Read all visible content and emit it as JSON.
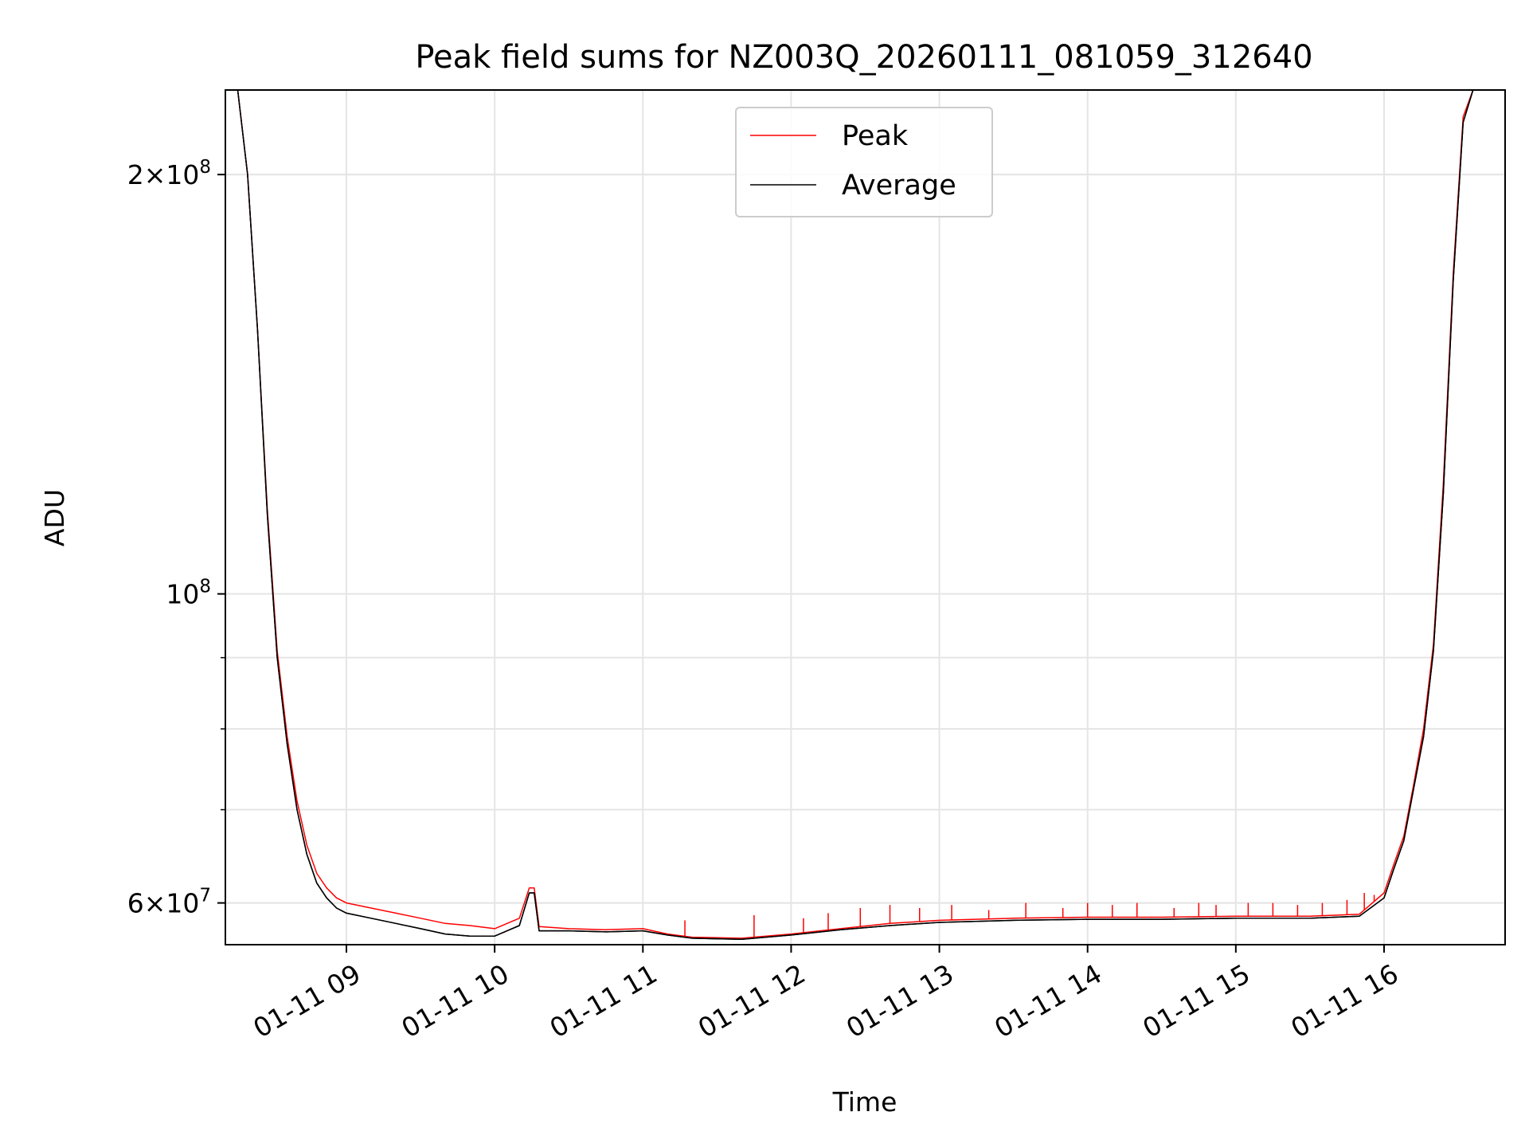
{
  "chart_data": {
    "type": "line",
    "title": "Peak field sums for NZ003Q_20260111_081059_312640",
    "xlabel": "Time",
    "ylabel": "ADU",
    "yscale": "log",
    "grid": true,
    "legend_position": "top-center",
    "xlim": [
      "2026-01-11 08:11",
      "2026-01-11 16:49"
    ],
    "ylim": [
      56000000,
      230000000
    ],
    "x_ticks": [
      {
        "value": "2026-01-11 09:00",
        "label": "01-11 09"
      },
      {
        "value": "2026-01-11 10:00",
        "label": "01-11 10"
      },
      {
        "value": "2026-01-11 11:00",
        "label": "01-11 11"
      },
      {
        "value": "2026-01-11 12:00",
        "label": "01-11 12"
      },
      {
        "value": "2026-01-11 13:00",
        "label": "01-11 13"
      },
      {
        "value": "2026-01-11 14:00",
        "label": "01-11 14"
      },
      {
        "value": "2026-01-11 15:00",
        "label": "01-11 15"
      },
      {
        "value": "2026-01-11 16:00",
        "label": "01-11 16"
      }
    ],
    "y_ticks": [
      {
        "value": 200000000,
        "label_base": "2×10",
        "label_exp": "8"
      },
      {
        "value": 100000000,
        "label_base": "10",
        "label_exp": "8"
      },
      {
        "value": 60000000,
        "label_base": "6×10",
        "label_exp": "7"
      }
    ],
    "y_minor_ticks": [
      60000000,
      70000000,
      80000000,
      90000000,
      200000000
    ],
    "series": [
      {
        "name": "Peak",
        "color": "#ff0000",
        "x": [
          "2026-01-11 08:11",
          "2026-01-11 08:16",
          "2026-01-11 08:20",
          "2026-01-11 08:24",
          "2026-01-11 08:28",
          "2026-01-11 08:32",
          "2026-01-11 08:36",
          "2026-01-11 08:40",
          "2026-01-11 08:44",
          "2026-01-11 08:48",
          "2026-01-11 08:52",
          "2026-01-11 08:56",
          "2026-01-11 09:00",
          "2026-01-11 09:10",
          "2026-01-11 09:20",
          "2026-01-11 09:30",
          "2026-01-11 09:40",
          "2026-01-11 09:50",
          "2026-01-11 10:00",
          "2026-01-11 10:10",
          "2026-01-11 10:14",
          "2026-01-11 10:16",
          "2026-01-11 10:18",
          "2026-01-11 10:30",
          "2026-01-11 10:45",
          "2026-01-11 11:00",
          "2026-01-11 11:10",
          "2026-01-11 11:20",
          "2026-01-11 11:40",
          "2026-01-11 12:00",
          "2026-01-11 12:20",
          "2026-01-11 12:40",
          "2026-01-11 13:00",
          "2026-01-11 13:30",
          "2026-01-11 14:00",
          "2026-01-11 14:30",
          "2026-01-11 15:00",
          "2026-01-11 15:30",
          "2026-01-11 15:50",
          "2026-01-11 16:00",
          "2026-01-11 16:04",
          "2026-01-11 16:08",
          "2026-01-11 16:12",
          "2026-01-11 16:16",
          "2026-01-11 16:20",
          "2026-01-11 16:24",
          "2026-01-11 16:28",
          "2026-01-11 16:32",
          "2026-01-11 16:36",
          "2026-01-11 16:40",
          "2026-01-11 16:49"
        ],
        "values": [
          230000000,
          230000000,
          200000000,
          155000000,
          115000000,
          91000000,
          79000000,
          71000000,
          66000000,
          63000000,
          61500000,
          60500000,
          60000000,
          59500000,
          59000000,
          58500000,
          58000000,
          57800000,
          57500000,
          58500000,
          61500000,
          61500000,
          57700000,
          57500000,
          57400000,
          57500000,
          57000000,
          56700000,
          56600000,
          57000000,
          57500000,
          58000000,
          58300000,
          58500000,
          58600000,
          58600000,
          58700000,
          58700000,
          58900000,
          61000000,
          64000000,
          67000000,
          73000000,
          80000000,
          92000000,
          120000000,
          170000000,
          220000000,
          230000000,
          230000000,
          230000000
        ],
        "spikes": [
          {
            "x": "2026-01-11 11:17",
            "value": 58300000
          },
          {
            "x": "2026-01-11 11:45",
            "value": 58800000
          },
          {
            "x": "2026-01-11 12:05",
            "value": 58500000
          },
          {
            "x": "2026-01-11 12:15",
            "value": 59000000
          },
          {
            "x": "2026-01-11 12:28",
            "value": 59500000
          },
          {
            "x": "2026-01-11 12:40",
            "value": 59800000
          },
          {
            "x": "2026-01-11 12:52",
            "value": 59500000
          },
          {
            "x": "2026-01-11 13:05",
            "value": 59800000
          },
          {
            "x": "2026-01-11 13:20",
            "value": 59300000
          },
          {
            "x": "2026-01-11 13:35",
            "value": 60000000
          },
          {
            "x": "2026-01-11 13:50",
            "value": 59500000
          },
          {
            "x": "2026-01-11 14:00",
            "value": 60000000
          },
          {
            "x": "2026-01-11 14:10",
            "value": 59800000
          },
          {
            "x": "2026-01-11 14:20",
            "value": 60000000
          },
          {
            "x": "2026-01-11 14:35",
            "value": 59500000
          },
          {
            "x": "2026-01-11 14:45",
            "value": 60000000
          },
          {
            "x": "2026-01-11 14:52",
            "value": 59800000
          },
          {
            "x": "2026-01-11 15:05",
            "value": 60000000
          },
          {
            "x": "2026-01-11 15:15",
            "value": 60000000
          },
          {
            "x": "2026-01-11 15:25",
            "value": 59800000
          },
          {
            "x": "2026-01-11 15:35",
            "value": 60000000
          },
          {
            "x": "2026-01-11 15:45",
            "value": 60300000
          },
          {
            "x": "2026-01-11 15:52",
            "value": 61000000
          },
          {
            "x": "2026-01-11 15:56",
            "value": 60800000
          }
        ]
      },
      {
        "name": "Average",
        "color": "#000000",
        "x": [
          "2026-01-11 08:11",
          "2026-01-11 08:16",
          "2026-01-11 08:20",
          "2026-01-11 08:24",
          "2026-01-11 08:28",
          "2026-01-11 08:32",
          "2026-01-11 08:36",
          "2026-01-11 08:40",
          "2026-01-11 08:44",
          "2026-01-11 08:48",
          "2026-01-11 08:52",
          "2026-01-11 08:56",
          "2026-01-11 09:00",
          "2026-01-11 09:10",
          "2026-01-11 09:20",
          "2026-01-11 09:30",
          "2026-01-11 09:40",
          "2026-01-11 09:50",
          "2026-01-11 10:00",
          "2026-01-11 10:10",
          "2026-01-11 10:14",
          "2026-01-11 10:16",
          "2026-01-11 10:18",
          "2026-01-11 10:30",
          "2026-01-11 10:45",
          "2026-01-11 11:00",
          "2026-01-11 11:10",
          "2026-01-11 11:20",
          "2026-01-11 11:40",
          "2026-01-11 12:00",
          "2026-01-11 12:20",
          "2026-01-11 12:40",
          "2026-01-11 13:00",
          "2026-01-11 13:30",
          "2026-01-11 14:00",
          "2026-01-11 14:30",
          "2026-01-11 15:00",
          "2026-01-11 15:30",
          "2026-01-11 15:50",
          "2026-01-11 16:00",
          "2026-01-11 16:04",
          "2026-01-11 16:08",
          "2026-01-11 16:12",
          "2026-01-11 16:16",
          "2026-01-11 16:20",
          "2026-01-11 16:24",
          "2026-01-11 16:28",
          "2026-01-11 16:32",
          "2026-01-11 16:36",
          "2026-01-11 16:40",
          "2026-01-11 16:49"
        ],
        "values": [
          230000000,
          230000000,
          200000000,
          155000000,
          114000000,
          90000000,
          78000000,
          70000000,
          65000000,
          62000000,
          60500000,
          59500000,
          59000000,
          58500000,
          58000000,
          57500000,
          57000000,
          56800000,
          56800000,
          57800000,
          61000000,
          61000000,
          57300000,
          57300000,
          57200000,
          57300000,
          56900000,
          56600000,
          56500000,
          56900000,
          57400000,
          57800000,
          58100000,
          58300000,
          58400000,
          58400000,
          58500000,
          58500000,
          58700000,
          60500000,
          63500000,
          66500000,
          72500000,
          79000000,
          91000000,
          118000000,
          168000000,
          218000000,
          230000000,
          230000000,
          230000000
        ]
      }
    ]
  }
}
